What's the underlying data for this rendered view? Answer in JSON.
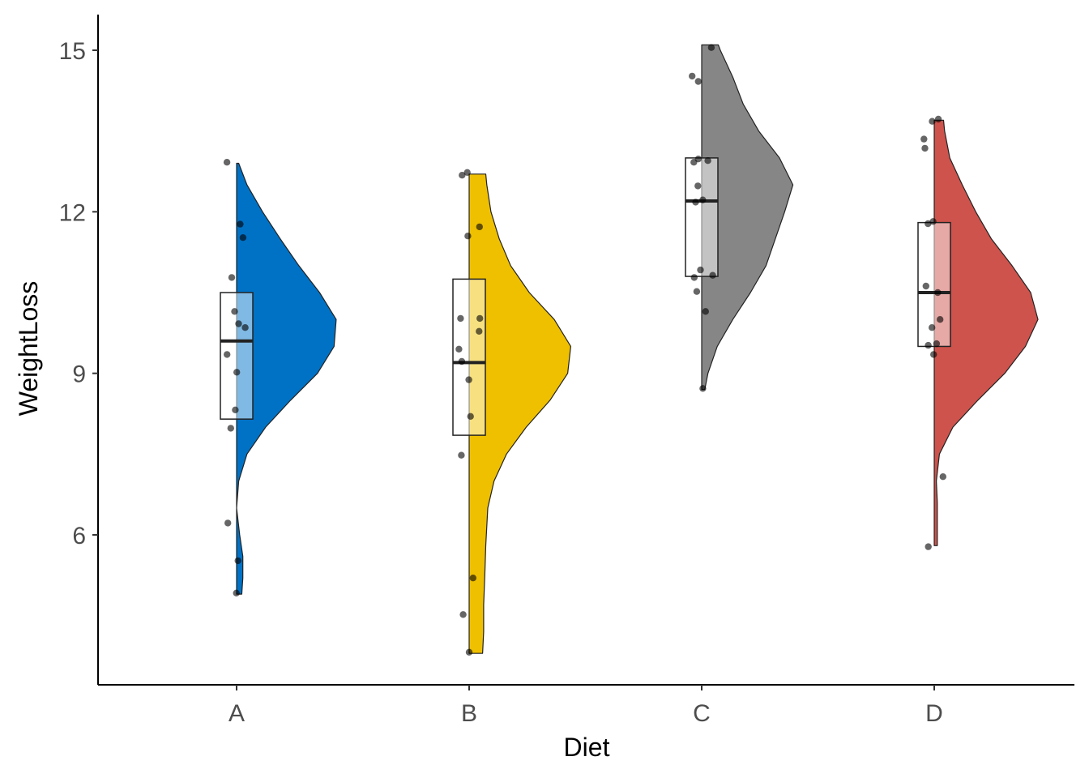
{
  "chart_data": {
    "type": "raincloud",
    "title": "",
    "xlabel": "Diet",
    "ylabel": "WeightLoss",
    "ylim": [
      3.7,
      15.5
    ],
    "yticks": [
      6,
      9,
      12,
      15
    ],
    "grid": false,
    "legend": "none",
    "categories": [
      "A",
      "B",
      "C",
      "D"
    ],
    "colors": [
      "#0072C6",
      "#EFC000",
      "#868686",
      "#CD534C"
    ],
    "groups": [
      {
        "category": "A",
        "box": {
          "q1": 8.15,
          "median": 9.6,
          "q3": 10.5
        },
        "density": {
          "min": 4.9,
          "max": 12.9,
          "profile": [
            [
              4.9,
              0.05
            ],
            [
              5.2,
              0.06
            ],
            [
              5.6,
              0.06
            ],
            [
              6.0,
              0.03
            ],
            [
              6.5,
              0.0
            ],
            [
              7.0,
              0.02
            ],
            [
              7.5,
              0.1
            ],
            [
              8.0,
              0.28
            ],
            [
              8.5,
              0.52
            ],
            [
              9.0,
              0.78
            ],
            [
              9.5,
              0.94
            ],
            [
              10.0,
              0.96
            ],
            [
              10.5,
              0.8
            ],
            [
              11.0,
              0.6
            ],
            [
              11.5,
              0.42
            ],
            [
              12.0,
              0.25
            ],
            [
              12.5,
              0.1
            ],
            [
              12.9,
              0.02
            ]
          ]
        },
        "points": [
          4.92,
          5.52,
          6.22,
          7.98,
          8.32,
          9.02,
          9.35,
          9.85,
          9.92,
          10.15,
          10.78,
          11.52,
          11.77,
          12.92
        ]
      },
      {
        "category": "B",
        "box": {
          "q1": 7.85,
          "median": 9.2,
          "q3": 10.75
        },
        "density": {
          "min": 3.8,
          "max": 12.7,
          "profile": [
            [
              3.8,
              0.13
            ],
            [
              4.2,
              0.14
            ],
            [
              4.7,
              0.14
            ],
            [
              5.2,
              0.15
            ],
            [
              5.8,
              0.16
            ],
            [
              6.5,
              0.18
            ],
            [
              7.0,
              0.24
            ],
            [
              7.5,
              0.36
            ],
            [
              8.0,
              0.55
            ],
            [
              8.5,
              0.78
            ],
            [
              9.0,
              0.95
            ],
            [
              9.5,
              0.98
            ],
            [
              10.0,
              0.82
            ],
            [
              10.5,
              0.58
            ],
            [
              11.0,
              0.4
            ],
            [
              11.5,
              0.29
            ],
            [
              12.0,
              0.21
            ],
            [
              12.5,
              0.17
            ],
            [
              12.7,
              0.16
            ]
          ]
        },
        "points": [
          3.82,
          4.52,
          5.2,
          7.48,
          8.2,
          8.88,
          9.22,
          9.45,
          9.78,
          10.02,
          10.02,
          11.55,
          11.72,
          12.68,
          12.73
        ]
      },
      {
        "category": "C",
        "box": {
          "q1": 10.8,
          "median": 12.2,
          "q3": 13.0
        },
        "density": {
          "min": 8.7,
          "max": 15.1,
          "profile": [
            [
              8.7,
              0.03
            ],
            [
              9.0,
              0.06
            ],
            [
              9.5,
              0.15
            ],
            [
              10.0,
              0.3
            ],
            [
              10.5,
              0.47
            ],
            [
              11.0,
              0.62
            ],
            [
              11.5,
              0.71
            ],
            [
              12.0,
              0.8
            ],
            [
              12.5,
              0.88
            ],
            [
              13.0,
              0.75
            ],
            [
              13.5,
              0.55
            ],
            [
              14.0,
              0.4
            ],
            [
              14.5,
              0.3
            ],
            [
              15.0,
              0.18
            ],
            [
              15.1,
              0.16
            ]
          ]
        },
        "points": [
          8.72,
          10.15,
          10.52,
          10.78,
          10.82,
          10.92,
          12.18,
          12.22,
          12.48,
          12.92,
          12.95,
          12.98,
          14.42,
          14.52,
          15.05
        ]
      },
      {
        "category": "D",
        "box": {
          "q1": 9.5,
          "median": 10.5,
          "q3": 11.8
        },
        "density": {
          "min": 5.8,
          "max": 13.7,
          "profile": [
            [
              5.8,
              0.03
            ],
            [
              6.2,
              0.03
            ],
            [
              6.6,
              0.03
            ],
            [
              7.0,
              0.02
            ],
            [
              7.5,
              0.05
            ],
            [
              8.0,
              0.18
            ],
            [
              8.5,
              0.42
            ],
            [
              9.0,
              0.68
            ],
            [
              9.5,
              0.88
            ],
            [
              10.0,
              1.0
            ],
            [
              10.5,
              0.93
            ],
            [
              11.0,
              0.75
            ],
            [
              11.5,
              0.55
            ],
            [
              12.0,
              0.4
            ],
            [
              12.5,
              0.27
            ],
            [
              13.0,
              0.15
            ],
            [
              13.5,
              0.1
            ],
            [
              13.7,
              0.09
            ]
          ]
        },
        "points": [
          5.78,
          7.08,
          9.35,
          9.52,
          9.55,
          9.85,
          10.0,
          10.5,
          10.62,
          11.78,
          11.82,
          13.18,
          13.35,
          13.68,
          13.72
        ]
      }
    ]
  }
}
